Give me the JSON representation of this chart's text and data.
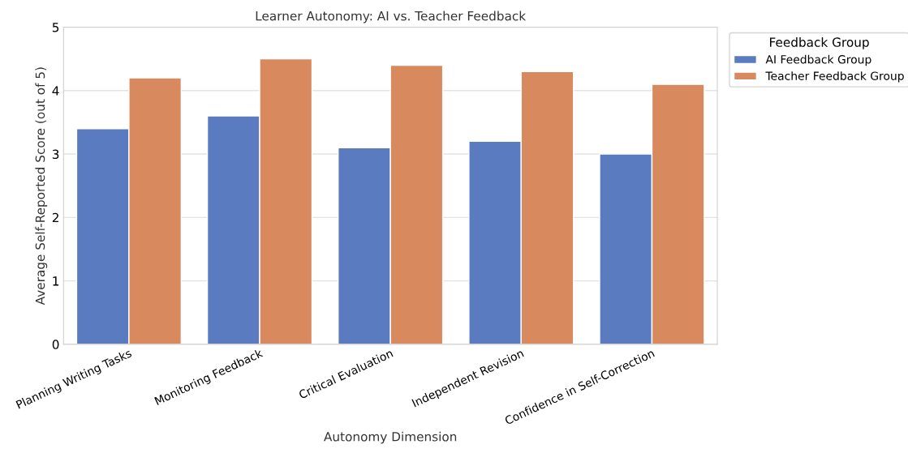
{
  "chart_data": {
    "type": "bar",
    "title": "Learner Autonomy: AI vs. Teacher Feedback",
    "xlabel": "Autonomy Dimension",
    "ylabel": "Average Self-Reported Score (out of 5)",
    "legend_title": "Feedback Group",
    "categories": [
      "Planning Writing Tasks",
      "Monitoring Feedback",
      "Critical Evaluation",
      "Independent Revision",
      "Confidence in Self-Correction"
    ],
    "series": [
      {
        "name": "AI Feedback Group",
        "color": "#5a7bbf",
        "values": [
          3.4,
          3.6,
          3.1,
          3.2,
          3.0
        ]
      },
      {
        "name": "Teacher Feedback Group",
        "color": "#d88a5e",
        "values": [
          4.2,
          4.5,
          4.4,
          4.3,
          4.1
        ]
      }
    ],
    "ylim": [
      0,
      5
    ],
    "yticks": [
      0,
      1,
      2,
      3,
      4,
      5
    ],
    "grid": "y",
    "legend": "right"
  }
}
